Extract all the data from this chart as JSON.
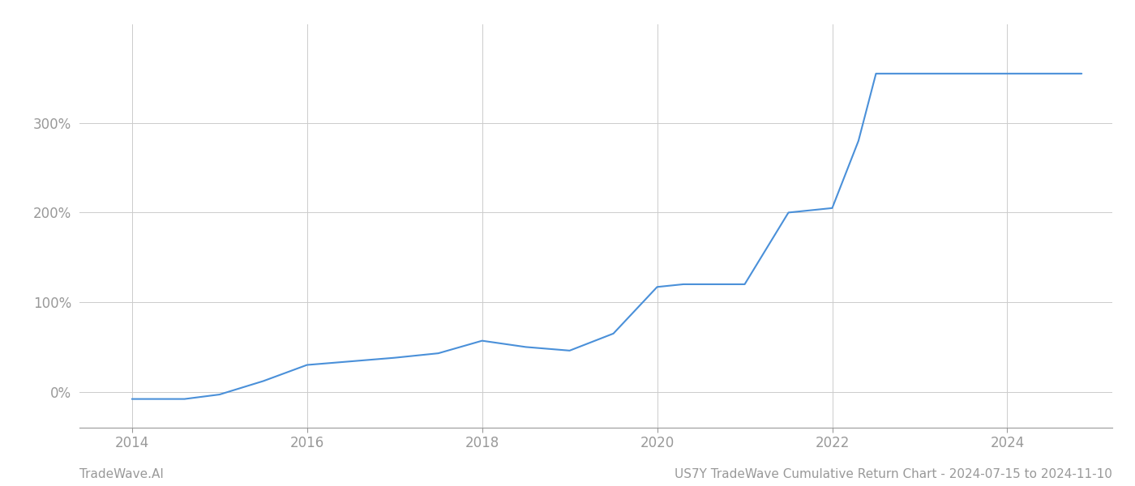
{
  "title": "US7Y TradeWave Cumulative Return Chart - 2024-07-15 to 2024-11-10",
  "watermark": "TradeWave.AI",
  "line_color": "#4a90d9",
  "background_color": "#ffffff",
  "grid_color": "#cccccc",
  "axis_color": "#999999",
  "x_values": [
    2014.0,
    2014.6,
    2015.0,
    2015.5,
    2016.0,
    2016.5,
    2017.0,
    2017.5,
    2018.0,
    2018.5,
    2019.0,
    2019.5,
    2020.0,
    2020.3,
    2021.0,
    2021.5,
    2022.0,
    2022.3,
    2022.5,
    2023.0,
    2023.5,
    2024.0,
    2024.85
  ],
  "y_values": [
    -8.0,
    -8.0,
    -3.0,
    12.0,
    30.0,
    34.0,
    38.0,
    43.0,
    57.0,
    50.0,
    46.0,
    65.0,
    117.0,
    120.0,
    120.0,
    200.0,
    205.0,
    280.0,
    355.0,
    355.0,
    355.0,
    355.0,
    355.0
  ],
  "xlim": [
    2013.4,
    2025.2
  ],
  "ylim": [
    -40,
    410
  ],
  "yticks": [
    0,
    100,
    200,
    300
  ],
  "xticks": [
    2014,
    2016,
    2018,
    2020,
    2022,
    2024
  ],
  "line_width": 1.5,
  "figsize": [
    14.0,
    6.0
  ],
  "dpi": 100
}
